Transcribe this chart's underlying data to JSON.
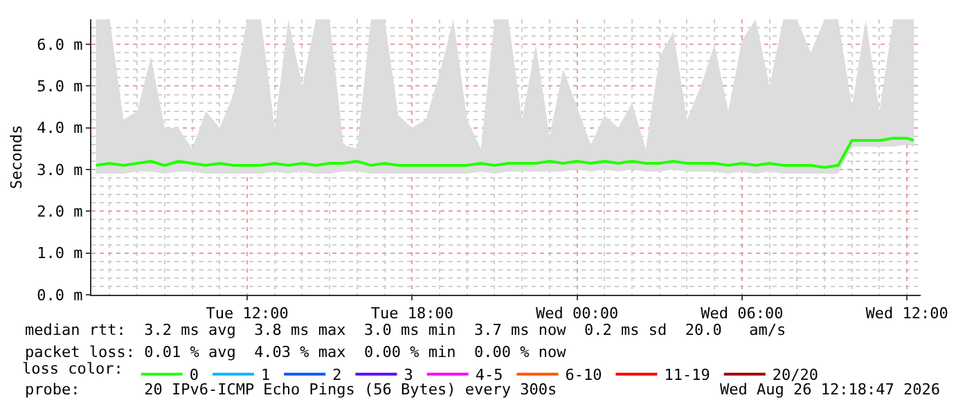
{
  "chart_data": {
    "type": "line",
    "ylabel": "Seconds",
    "x": [
      "2026-08-25T06:30",
      "2026-08-25T07:00",
      "2026-08-25T07:30",
      "2026-08-25T08:00",
      "2026-08-25T08:30",
      "2026-08-25T09:00",
      "2026-08-25T09:30",
      "2026-08-25T10:00",
      "2026-08-25T10:30",
      "2026-08-25T11:00",
      "2026-08-25T11:30",
      "2026-08-25T12:00",
      "2026-08-25T12:30",
      "2026-08-25T13:00",
      "2026-08-25T13:30",
      "2026-08-25T14:00",
      "2026-08-25T14:30",
      "2026-08-25T15:00",
      "2026-08-25T15:30",
      "2026-08-25T16:00",
      "2026-08-25T16:30",
      "2026-08-25T17:00",
      "2026-08-25T17:30",
      "2026-08-25T18:00",
      "2026-08-25T18:30",
      "2026-08-25T19:00",
      "2026-08-25T19:30",
      "2026-08-25T20:00",
      "2026-08-25T20:30",
      "2026-08-25T21:00",
      "2026-08-25T21:30",
      "2026-08-25T22:00",
      "2026-08-25T22:30",
      "2026-08-25T23:00",
      "2026-08-25T23:30",
      "2026-08-26T00:00",
      "2026-08-26T00:30",
      "2026-08-26T01:00",
      "2026-08-26T01:30",
      "2026-08-26T02:00",
      "2026-08-26T02:30",
      "2026-08-26T03:00",
      "2026-08-26T03:30",
      "2026-08-26T04:00",
      "2026-08-26T04:30",
      "2026-08-26T05:00",
      "2026-08-26T05:30",
      "2026-08-26T06:00",
      "2026-08-26T06:30",
      "2026-08-26T07:00",
      "2026-08-26T07:30",
      "2026-08-26T08:00",
      "2026-08-26T08:30",
      "2026-08-26T09:00",
      "2026-08-26T09:30",
      "2026-08-26T10:00",
      "2026-08-26T10:30",
      "2026-08-26T11:00",
      "2026-08-26T11:30",
      "2026-08-26T12:00",
      "2026-08-26T12:15"
    ],
    "series": [
      {
        "name": "0",
        "color": "#22ff00",
        "values": [
          3.1,
          3.15,
          3.1,
          3.15,
          3.2,
          3.1,
          3.2,
          3.15,
          3.1,
          3.15,
          3.1,
          3.1,
          3.1,
          3.15,
          3.1,
          3.15,
          3.1,
          3.15,
          3.15,
          3.2,
          3.1,
          3.15,
          3.1,
          3.1,
          3.1,
          3.1,
          3.1,
          3.1,
          3.15,
          3.1,
          3.15,
          3.15,
          3.15,
          3.2,
          3.15,
          3.2,
          3.15,
          3.2,
          3.15,
          3.2,
          3.15,
          3.15,
          3.2,
          3.15,
          3.15,
          3.15,
          3.1,
          3.15,
          3.1,
          3.15,
          3.1,
          3.1,
          3.1,
          3.05,
          3.1,
          3.7,
          3.7,
          3.7,
          3.75,
          3.75,
          3.7
        ],
        "lower": [
          2.9,
          2.9,
          2.9,
          2.95,
          2.95,
          2.9,
          2.95,
          2.95,
          2.9,
          2.9,
          2.9,
          2.9,
          2.9,
          2.95,
          2.9,
          2.95,
          2.9,
          2.9,
          2.95,
          2.95,
          2.9,
          2.9,
          2.9,
          2.9,
          2.9,
          2.9,
          2.9,
          2.9,
          2.95,
          2.9,
          2.95,
          2.95,
          2.95,
          2.95,
          2.95,
          3.0,
          2.95,
          3.0,
          2.95,
          3.0,
          2.95,
          2.95,
          3.0,
          2.95,
          2.95,
          2.95,
          2.9,
          2.95,
          2.9,
          2.95,
          2.9,
          2.9,
          2.9,
          2.9,
          2.9,
          3.55,
          3.55,
          3.55,
          3.55,
          3.6,
          3.55
        ],
        "upper": [
          6.6,
          6.6,
          4.2,
          4.4,
          5.7,
          4.0,
          4.0,
          3.5,
          4.4,
          4.0,
          4.8,
          6.6,
          6.6,
          4.0,
          6.6,
          5.0,
          6.6,
          6.6,
          3.6,
          3.5,
          6.6,
          6.6,
          4.3,
          4.0,
          4.2,
          5.3,
          6.6,
          4.2,
          3.5,
          6.6,
          6.6,
          4.2,
          6.0,
          3.8,
          5.4,
          4.5,
          3.6,
          4.3,
          4.0,
          4.6,
          3.5,
          5.7,
          6.3,
          4.2,
          5.0,
          6.0,
          4.4,
          6.1,
          6.6,
          5.0,
          6.6,
          6.6,
          5.8,
          6.6,
          6.6,
          4.5,
          6.6,
          4.4,
          6.6,
          6.6,
          6.6
        ]
      },
      {
        "name": "1",
        "color": "#00b8ff",
        "values": [
          null,
          null,
          null,
          null,
          null,
          null,
          null,
          null,
          null,
          null,
          null,
          null,
          null,
          null,
          null,
          null,
          null,
          null,
          null,
          null,
          null,
          null,
          null,
          null,
          null,
          null,
          null,
          null,
          null,
          null,
          null,
          null,
          null,
          null,
          null,
          null,
          null,
          null,
          null,
          null,
          null,
          null,
          null,
          null,
          null,
          null,
          null,
          null,
          null,
          null,
          null,
          null,
          null,
          null,
          null,
          null,
          null,
          null,
          null,
          null,
          null
        ]
      },
      {
        "name": "2",
        "color": "#0059ff",
        "values": [
          null,
          null,
          null,
          null,
          null,
          null,
          null,
          null,
          null,
          null,
          null,
          null,
          null,
          null,
          null,
          null,
          null,
          null,
          null,
          null,
          null,
          null,
          null,
          null,
          null,
          null,
          null,
          null,
          null,
          null,
          null,
          null,
          null,
          null,
          null,
          null,
          null,
          null,
          null,
          null,
          null,
          null,
          null,
          null,
          null,
          null,
          null,
          null,
          null,
          null,
          null,
          null,
          null,
          null,
          null,
          null,
          null,
          null,
          null,
          null,
          null
        ]
      },
      {
        "name": "3",
        "color": "#5e00ff",
        "values": [
          null,
          null,
          null,
          null,
          null,
          null,
          null,
          null,
          null,
          null,
          null,
          null,
          null,
          null,
          null,
          null,
          null,
          null,
          null,
          null,
          null,
          null,
          null,
          null,
          null,
          null,
          null,
          null,
          null,
          null,
          null,
          null,
          null,
          null,
          null,
          null,
          null,
          null,
          null,
          null,
          null,
          null,
          null,
          null,
          null,
          null,
          null,
          null,
          null,
          null,
          null,
          null,
          null,
          null,
          null,
          null,
          null,
          null,
          null,
          null,
          null
        ]
      },
      {
        "name": "4-5",
        "color": "#ff00ff",
        "values": [
          null,
          null,
          null,
          null,
          null,
          null,
          null,
          null,
          null,
          null,
          null,
          null,
          null,
          null,
          null,
          null,
          null,
          null,
          null,
          null,
          null,
          null,
          null,
          null,
          null,
          null,
          null,
          null,
          null,
          null,
          null,
          null,
          null,
          null,
          null,
          null,
          null,
          null,
          null,
          null,
          null,
          null,
          null,
          null,
          null,
          null,
          null,
          null,
          null,
          null,
          null,
          null,
          null,
          null,
          null,
          null,
          null,
          null,
          null,
          null,
          null
        ]
      },
      {
        "name": "6-10",
        "color": "#ff5500",
        "values": [
          null,
          null,
          null,
          null,
          null,
          null,
          null,
          null,
          null,
          null,
          null,
          null,
          null,
          null,
          null,
          null,
          null,
          null,
          null,
          null,
          null,
          null,
          null,
          null,
          null,
          null,
          null,
          null,
          null,
          null,
          null,
          null,
          null,
          null,
          null,
          null,
          null,
          null,
          null,
          null,
          null,
          null,
          null,
          null,
          null,
          null,
          null,
          null,
          null,
          null,
          null,
          null,
          null,
          null,
          null,
          null,
          null,
          null,
          null,
          null,
          null
        ]
      },
      {
        "name": "11-19",
        "color": "#ff0000",
        "values": [
          null,
          null,
          null,
          null,
          null,
          null,
          null,
          null,
          null,
          null,
          null,
          null,
          null,
          null,
          null,
          null,
          null,
          null,
          null,
          null,
          null,
          null,
          null,
          null,
          null,
          null,
          null,
          null,
          null,
          null,
          null,
          null,
          null,
          null,
          null,
          null,
          null,
          null,
          null,
          null,
          null,
          null,
          null,
          null,
          null,
          null,
          null,
          null,
          null,
          null,
          null,
          null,
          null,
          null,
          null,
          null,
          null,
          null,
          null,
          null,
          null
        ]
      },
      {
        "name": "20/20",
        "color": "#a10000",
        "values": [
          null,
          null,
          null,
          null,
          null,
          null,
          null,
          null,
          null,
          null,
          null,
          null,
          null,
          null,
          null,
          null,
          null,
          null,
          null,
          null,
          null,
          null,
          null,
          null,
          null,
          null,
          null,
          null,
          null,
          null,
          null,
          null,
          null,
          null,
          null,
          null,
          null,
          null,
          null,
          null,
          null,
          null,
          null,
          null,
          null,
          null,
          null,
          null,
          null,
          null,
          null,
          null,
          null,
          null,
          null,
          null,
          null,
          null,
          null,
          null,
          null
        ]
      }
    ],
    "xlim": [
      "2026-08-25T06:20",
      "2026-08-26T12:30"
    ],
    "xticks": [
      {
        "value": "2026-08-25T12:00",
        "label": "Tue 12:00"
      },
      {
        "value": "2026-08-25T18:00",
        "label": "Tue 18:00"
      },
      {
        "value": "2026-08-26T00:00",
        "label": "Wed 00:00"
      },
      {
        "value": "2026-08-26T06:00",
        "label": "Wed 06:00"
      },
      {
        "value": "2026-08-26T12:00",
        "label": "Wed 12:00"
      }
    ],
    "ylim": [
      0,
      6.6
    ],
    "yticks": [
      {
        "value": 0,
        "label": "0.0 m"
      },
      {
        "value": 1,
        "label": "1.0 m"
      },
      {
        "value": 2,
        "label": "2.0 m"
      },
      {
        "value": 3,
        "label": "3.0 m"
      },
      {
        "value": 4,
        "label": "4.0 m"
      },
      {
        "value": 5,
        "label": "5.0 m"
      },
      {
        "value": 6,
        "label": "6.0 m"
      }
    ],
    "grid": true,
    "legend": "bottom",
    "legend_title": "loss color:",
    "annotations": [
      "median rtt:  3.2 ms avg  3.8 ms max  3.0 ms min  3.7 ms now  0.2 ms sd  20.0   am/s",
      "packet loss: 0.01 % avg  4.03 % max  0.00 % min  0.00 % now",
      "probe:       20 IPv6-ICMP Echo Pings (56 Bytes) every 300s",
      "Wed Aug 26 12:18:47 2026"
    ]
  }
}
